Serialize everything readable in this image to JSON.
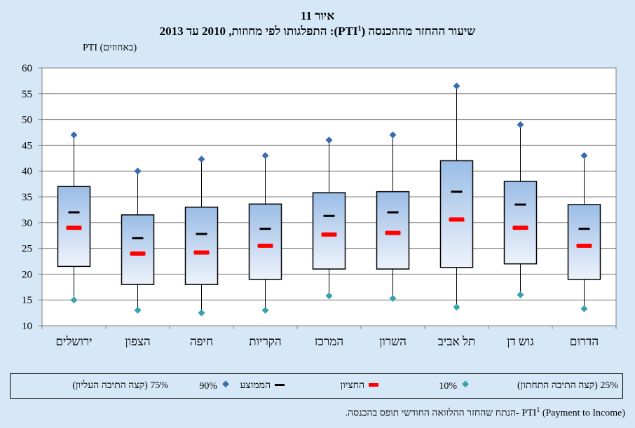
{
  "title": {
    "figure_label": "איור 11",
    "main_pre": "שיעור ההחזר מההכנסה (PTI",
    "main_sup": "1",
    "main_post": "): התפלגותו לפי מחוזות, 2010 עד 2013"
  },
  "chart_data": {
    "type": "boxplot",
    "ylabel": "PTI (באחוזים)",
    "ylim": [
      10,
      60
    ],
    "yticks": [
      10,
      15,
      20,
      25,
      30,
      35,
      40,
      45,
      50,
      55,
      60
    ],
    "grid": true,
    "categories": [
      "ירושלים",
      "הצפון",
      "חיפה",
      "הקריות",
      "המרכז",
      "השרון",
      "תל אביב",
      "גוש דן",
      "הדרום"
    ],
    "series": [
      {
        "name": "10%",
        "values": [
          15,
          13,
          12.5,
          13,
          15.8,
          15.3,
          13.6,
          16,
          13.3
        ]
      },
      {
        "name": "25% (קצה התיבה התחתון)",
        "values": [
          21.5,
          18,
          18,
          19,
          21,
          21,
          21.3,
          22,
          19
        ]
      },
      {
        "name": "החציון",
        "values": [
          29,
          24,
          24.2,
          25.5,
          27.7,
          28,
          30.6,
          29,
          25.5
        ]
      },
      {
        "name": "הממוצע",
        "values": [
          32,
          27,
          27.8,
          28.8,
          31.3,
          32,
          36,
          33.5,
          28.8
        ]
      },
      {
        "name": "75% (קצה התיבה העליון)",
        "values": [
          37,
          31.5,
          33,
          33.6,
          35.8,
          36,
          42,
          38,
          33.5
        ]
      },
      {
        "name": "90%",
        "values": [
          47,
          40,
          42.3,
          43,
          46,
          47,
          56.5,
          49,
          43
        ]
      }
    ]
  },
  "legend": {
    "p75": "75% (קצה התיבה העליון)",
    "p90": "90%",
    "mean": "הממוצע",
    "median": "החציון",
    "p10": "10%",
    "p25": "25% (קצה התיבה התחתון)"
  },
  "footnote": {
    "marker": "1",
    "prefix": "PTI",
    "text": " (Payment to Income) -הנתח שהחזר ההלוואה החודשי תופס בהכנסה."
  },
  "colors": {
    "background": "#d6e8f7",
    "box_top": "#9bbde6",
    "box_bottom": "#eef3fb",
    "p90_marker": "#3a6db0",
    "p10_marker": "#3aa2a8",
    "median": "#ff0000",
    "mean": "#000000"
  }
}
